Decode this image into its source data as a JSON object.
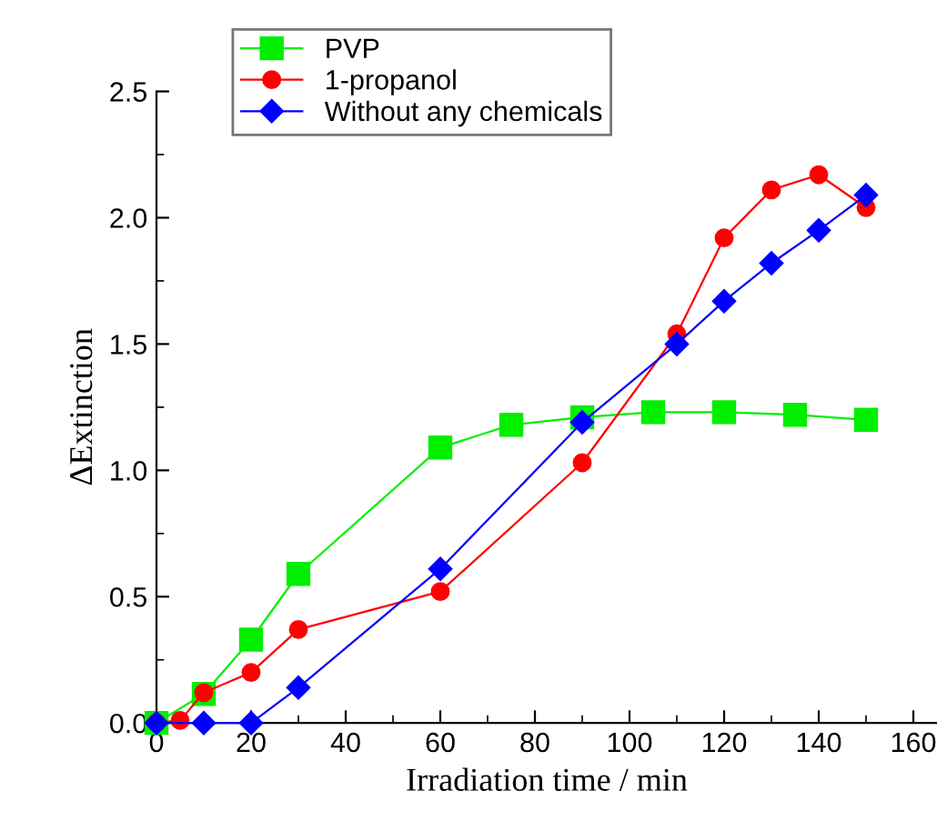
{
  "chart_data": {
    "type": "line",
    "xlabel": "Irradiation time / min",
    "ylabel": "ΔExtinction",
    "xlim": [
      0,
      165
    ],
    "xticks": [
      0,
      20,
      40,
      60,
      80,
      100,
      120,
      140,
      160
    ],
    "ylim": [
      0,
      2.5
    ],
    "yticks": [
      {
        "value": 0,
        "label": "0.0"
      },
      {
        "value": 0.5,
        "label": "0.5"
      },
      {
        "value": 1,
        "label": "1.0"
      },
      {
        "value": 1.5,
        "label": "1.5"
      },
      {
        "value": 2,
        "label": "2.0"
      },
      {
        "value": 2.5,
        "label": "2.5"
      }
    ],
    "grid": false,
    "legend": "top left",
    "series": [
      {
        "name": "PVP",
        "color": "#00ee00",
        "marker": "square",
        "x": [
          0,
          10,
          20,
          30,
          60,
          75,
          90,
          105,
          120,
          135,
          150
        ],
        "values": [
          0,
          0.115,
          0.33,
          0.59,
          1.09,
          1.18,
          1.21,
          1.23,
          1.23,
          1.22,
          1.2
        ]
      },
      {
        "name": "1-propanol",
        "color": "#ff0000",
        "marker": "circle",
        "x": [
          0,
          5,
          10,
          20,
          30,
          60,
          90,
          110,
          120,
          130,
          140,
          150
        ],
        "values": [
          0,
          0.01,
          0.12,
          0.2,
          0.37,
          0.52,
          1.03,
          1.54,
          1.92,
          2.11,
          2.17,
          2.04
        ]
      },
      {
        "name": "Without any chemicals",
        "color": "#0000ff",
        "marker": "diamond",
        "x": [
          0,
          10,
          20,
          30,
          60,
          90,
          110,
          120,
          130,
          140,
          150
        ],
        "values": [
          0,
          0,
          0,
          0.14,
          0.61,
          1.19,
          1.5,
          1.67,
          1.82,
          1.95,
          2.09
        ]
      }
    ]
  }
}
